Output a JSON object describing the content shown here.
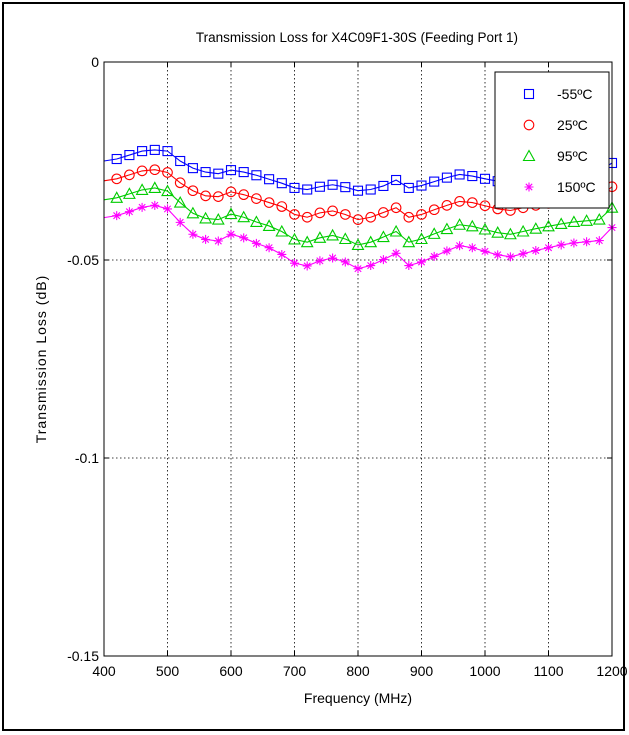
{
  "chart_data": {
    "type": "line",
    "title": "Transmission Loss for X4C09F1-30S (Feeding Port 1)",
    "xlabel": "Frequency (MHz)",
    "ylabel": "Transmission Loss (dB)",
    "xlim": [
      400,
      1200
    ],
    "ylim": [
      -0.15,
      0
    ],
    "xticks": [
      400,
      500,
      600,
      700,
      800,
      900,
      1000,
      1100,
      1200
    ],
    "yticks": [
      0,
      -0.05,
      -0.1,
      -0.15
    ],
    "ytick_labels": [
      "0",
      "-0.05",
      "-0.1",
      "-0.15"
    ],
    "grid": "dotted",
    "legend_position": "top-right",
    "marker_frequencies": [
      420,
      440,
      460,
      480,
      500,
      520,
      540,
      560,
      580,
      600,
      620,
      640,
      660,
      680,
      700,
      720,
      740,
      760,
      780,
      800,
      820,
      840,
      860,
      880,
      900,
      920,
      940,
      960,
      980,
      1000,
      1020,
      1040,
      1060,
      1080,
      1100,
      1120,
      1140,
      1160,
      1180,
      1200
    ],
    "series": [
      {
        "name": "-55ºC",
        "color": "#0000ff",
        "marker": "square",
        "values": [
          -0.0245,
          -0.0235,
          -0.0225,
          -0.0222,
          -0.0225,
          -0.025,
          -0.0268,
          -0.0278,
          -0.0282,
          -0.0273,
          -0.0278,
          -0.0286,
          -0.0296,
          -0.0306,
          -0.0318,
          -0.0322,
          -0.0315,
          -0.031,
          -0.0316,
          -0.0325,
          -0.0322,
          -0.0313,
          -0.0298,
          -0.0318,
          -0.0312,
          -0.0302,
          -0.0292,
          -0.0284,
          -0.0288,
          -0.0295,
          -0.0301,
          -0.0305,
          -0.0302,
          -0.0297,
          -0.0292,
          -0.029,
          -0.0284,
          -0.0278,
          -0.0276,
          -0.0255
        ]
      },
      {
        "name": "25ºC",
        "color": "#ff0000",
        "marker": "circle",
        "values": [
          -0.0295,
          -0.0285,
          -0.0275,
          -0.0272,
          -0.0279,
          -0.0305,
          -0.0325,
          -0.0338,
          -0.034,
          -0.0328,
          -0.0335,
          -0.0345,
          -0.0355,
          -0.0365,
          -0.0385,
          -0.0392,
          -0.0381,
          -0.0376,
          -0.0385,
          -0.0398,
          -0.0392,
          -0.038,
          -0.0368,
          -0.0392,
          -0.0385,
          -0.0373,
          -0.0362,
          -0.0352,
          -0.0355,
          -0.0363,
          -0.0371,
          -0.0375,
          -0.0368,
          -0.0362,
          -0.0357,
          -0.0351,
          -0.0347,
          -0.0344,
          -0.0342,
          -0.0315
        ]
      },
      {
        "name": "95ºC",
        "color": "#00cc00",
        "marker": "triangle",
        "values": [
          -0.0343,
          -0.0333,
          -0.0323,
          -0.0318,
          -0.0326,
          -0.0355,
          -0.0382,
          -0.0395,
          -0.0398,
          -0.0384,
          -0.0392,
          -0.0404,
          -0.0414,
          -0.0428,
          -0.0448,
          -0.0455,
          -0.0444,
          -0.0438,
          -0.0447,
          -0.0462,
          -0.0455,
          -0.0442,
          -0.0428,
          -0.0455,
          -0.0447,
          -0.0434,
          -0.0422,
          -0.0411,
          -0.0415,
          -0.0423,
          -0.0431,
          -0.0435,
          -0.0428,
          -0.0421,
          -0.0415,
          -0.0409,
          -0.0404,
          -0.0401,
          -0.0398,
          -0.0368
        ]
      },
      {
        "name": "150ºC",
        "color": "#ff00ff",
        "marker": "asterisk",
        "values": [
          -0.0388,
          -0.0378,
          -0.0367,
          -0.0362,
          -0.0371,
          -0.0405,
          -0.0435,
          -0.0448,
          -0.0452,
          -0.0435,
          -0.0444,
          -0.0458,
          -0.0469,
          -0.0486,
          -0.0508,
          -0.0515,
          -0.0502,
          -0.0495,
          -0.0505,
          -0.0522,
          -0.0514,
          -0.0499,
          -0.0483,
          -0.0514,
          -0.0505,
          -0.0491,
          -0.0477,
          -0.0464,
          -0.0469,
          -0.0478,
          -0.0487,
          -0.0492,
          -0.0484,
          -0.0476,
          -0.0469,
          -0.0462,
          -0.0457,
          -0.0454,
          -0.0451,
          -0.0418
        ]
      }
    ]
  }
}
